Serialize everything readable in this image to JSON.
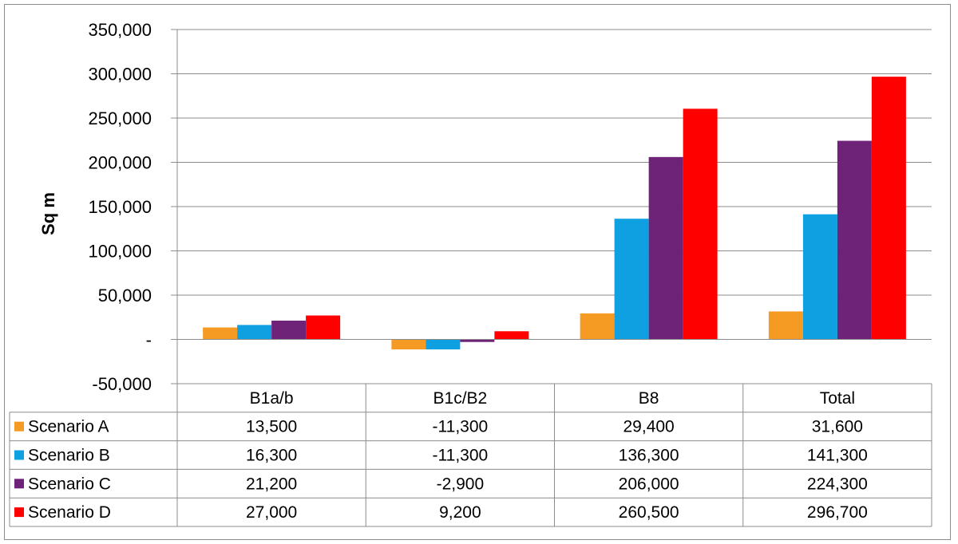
{
  "chart_data": {
    "type": "bar",
    "title": "",
    "xlabel": "",
    "ylabel": "Sq m",
    "ylim": [
      -50000,
      350000
    ],
    "yticks": [
      350000,
      300000,
      250000,
      200000,
      150000,
      100000,
      50000,
      0,
      -50000
    ],
    "ytick_labels": [
      "350,000",
      "300,000",
      "250,000",
      "200,000",
      "150,000",
      "100,000",
      "50,000",
      "-",
      "-50,000"
    ],
    "categories": [
      "B1a/b",
      "B1c/B2",
      "B8",
      "Total"
    ],
    "grid": true,
    "legend": "data-table",
    "series": [
      {
        "name": "Scenario A",
        "color": "#F59A23",
        "values": [
          13500,
          -11300,
          29400,
          31600
        ],
        "labels": [
          "13,500",
          "-11,300",
          "29,400",
          "31,600"
        ]
      },
      {
        "name": "Scenario B",
        "color": "#0EA0E0",
        "values": [
          16300,
          -11300,
          136300,
          141300
        ],
        "labels": [
          "16,300",
          "-11,300",
          "136,300",
          "141,300"
        ]
      },
      {
        "name": "Scenario C",
        "color": "#6E2379",
        "values": [
          21200,
          -2900,
          206000,
          224300
        ],
        "labels": [
          "21,200",
          "-2,900",
          "206,000",
          "224,300"
        ]
      },
      {
        "name": "Scenario D",
        "color": "#FF0000",
        "values": [
          27000,
          9200,
          260500,
          296700
        ],
        "labels": [
          "27,000",
          "9,200",
          "260,500",
          "296,700"
        ]
      }
    ]
  }
}
